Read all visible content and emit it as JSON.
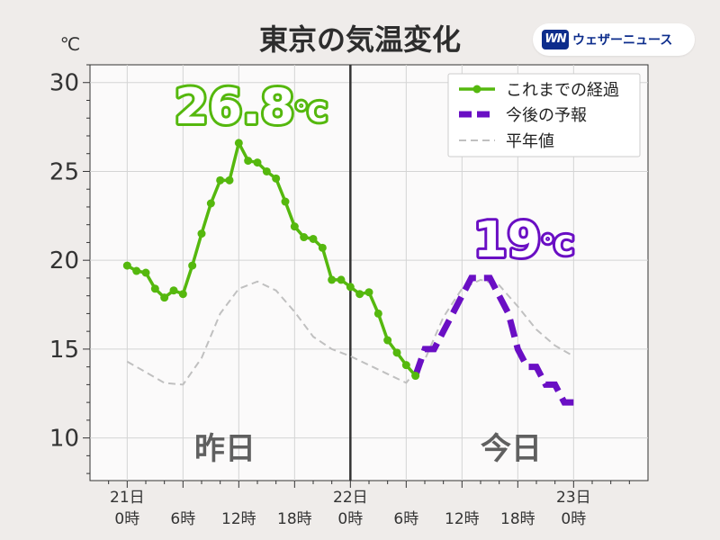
{
  "title": "東京の気温変化",
  "brand": {
    "logo_text": "WN",
    "name": "ウェザーニュース"
  },
  "chart_data": {
    "type": "line",
    "ylabel": "℃",
    "ylim": [
      7.6,
      31
    ],
    "xlim": [
      -4,
      56
    ],
    "yticks": [
      10,
      15,
      20,
      25,
      30
    ],
    "xticks": [
      {
        "hour": 0,
        "label": "21日\n0時"
      },
      {
        "hour": 6,
        "label": "6時"
      },
      {
        "hour": 12,
        "label": "12時"
      },
      {
        "hour": 18,
        "label": "18時"
      },
      {
        "hour": 24,
        "label": "22日\n0時"
      },
      {
        "hour": 30,
        "label": "6時"
      },
      {
        "hour": 36,
        "label": "12時"
      },
      {
        "hour": 42,
        "label": "18時"
      },
      {
        "hour": 48,
        "label": "23日\n0時"
      }
    ],
    "divider_hour": 24,
    "grid": true,
    "legend": {
      "position": "top-right"
    },
    "series": [
      {
        "name": "これまでの経過",
        "color": "#55b80e",
        "x": [
          0,
          1,
          2,
          3,
          4,
          5,
          6,
          7,
          8,
          9,
          10,
          11,
          12,
          13,
          14,
          15,
          16,
          17,
          18,
          19,
          20,
          21,
          22,
          23,
          24,
          25,
          26,
          27,
          28,
          29,
          30,
          31
        ],
        "y": [
          19.7,
          19.4,
          19.3,
          18.4,
          17.9,
          18.3,
          18.1,
          19.7,
          21.5,
          23.2,
          24.5,
          24.5,
          26.6,
          25.6,
          25.5,
          25.0,
          24.6,
          23.3,
          21.9,
          21.3,
          21.2,
          20.7,
          18.9,
          18.9,
          18.5,
          18.1,
          18.2,
          17.0,
          15.5,
          14.8,
          14.1,
          13.5
        ]
      },
      {
        "name": "今後の予報",
        "color": "#6a0fc4",
        "x": [
          31,
          32,
          33,
          34,
          35,
          36,
          37,
          38,
          39,
          40,
          41,
          42,
          43,
          44,
          45,
          46,
          47,
          48
        ],
        "y": [
          13.5,
          15,
          15,
          16,
          17,
          18,
          19,
          19,
          19,
          18,
          17,
          15,
          14,
          14,
          13,
          13,
          12,
          12
        ]
      },
      {
        "name": "平年値",
        "color": "#c0c0c0",
        "x": [
          0,
          2,
          4,
          6,
          8,
          10,
          12,
          14,
          16,
          18,
          20,
          22,
          24,
          26,
          28,
          30,
          32,
          34,
          36,
          38,
          40,
          42,
          44,
          46,
          48
        ],
        "y": [
          14.3,
          13.7,
          13.1,
          13.0,
          14.5,
          17.0,
          18.4,
          18.8,
          18.3,
          17.1,
          15.7,
          15.0,
          14.6,
          14.1,
          13.6,
          13.1,
          14.4,
          16.8,
          18.4,
          18.9,
          18.6,
          17.4,
          16.1,
          15.2,
          14.6
        ]
      }
    ],
    "annotations": {
      "max_temp": {
        "text": "26.8℃",
        "value": "26.8",
        "unit": "℃"
      },
      "forecast_max": {
        "text": "19℃",
        "value": "19",
        "unit": "℃"
      },
      "yesterday": "昨日",
      "today": "今日"
    }
  }
}
